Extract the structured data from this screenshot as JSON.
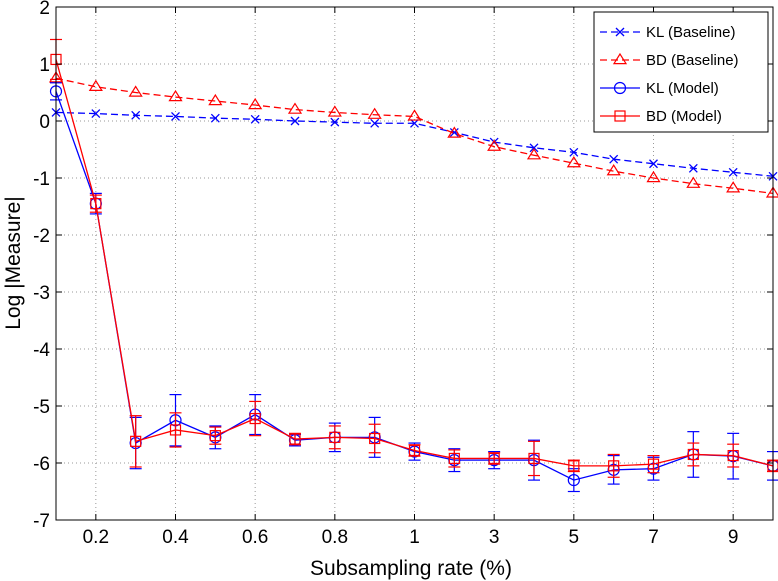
{
  "chart_data": {
    "type": "line",
    "title": "",
    "xlabel": "Subsampling rate (%)",
    "ylabel": "Log |Measure|",
    "ylim": [
      -7,
      2
    ],
    "grid": true,
    "legend_position": "top-right",
    "x_tick_labels": [
      "0.2",
      "0.4",
      "0.6",
      "0.8",
      "1",
      "3",
      "5",
      "7",
      "9"
    ],
    "y_tick_labels": [
      "2",
      "1",
      "0",
      "-1",
      "-2",
      "-3",
      "-4",
      "-5",
      "-6",
      "-7"
    ],
    "x": [
      0.1,
      0.2,
      0.3,
      0.4,
      0.5,
      0.6,
      0.7,
      0.8,
      0.9,
      1,
      2,
      3,
      4,
      5,
      6,
      7,
      8,
      9,
      10
    ],
    "colors": {
      "kl": "#0000ff",
      "bd": "#ff0000"
    },
    "series": [
      {
        "name": "KL (Baseline)",
        "color": "#0000ff",
        "line": "dashed",
        "marker": "x",
        "values": [
          0.15,
          0.13,
          0.1,
          0.08,
          0.05,
          0.03,
          0.0,
          -0.02,
          -0.04,
          -0.04,
          -0.2,
          -0.37,
          -0.47,
          -0.55,
          -0.67,
          -0.75,
          -0.83,
          -0.9,
          -0.97
        ]
      },
      {
        "name": "BD (Baseline)",
        "color": "#ff0000",
        "line": "dashed",
        "marker": "triangle",
        "values": [
          0.75,
          0.6,
          0.5,
          0.42,
          0.35,
          0.28,
          0.2,
          0.15,
          0.11,
          0.08,
          -0.22,
          -0.45,
          -0.6,
          -0.74,
          -0.88,
          -1.0,
          -1.1,
          -1.18,
          -1.27
        ]
      },
      {
        "name": "KL (Model)",
        "color": "#0000ff",
        "line": "solid",
        "marker": "circle",
        "values": [
          0.52,
          -1.45,
          -5.65,
          -5.25,
          -5.55,
          -5.15,
          -5.6,
          -5.55,
          -5.55,
          -5.8,
          -5.95,
          -5.95,
          -5.95,
          -6.3,
          -6.12,
          -6.1,
          -5.85,
          -5.88,
          -6.05
        ],
        "errors": [
          0.15,
          0.18,
          0.45,
          0.45,
          0.2,
          0.35,
          0.1,
          0.25,
          0.35,
          0.15,
          0.2,
          0.15,
          0.35,
          0.2,
          0.25,
          0.2,
          0.4,
          0.4,
          0.25
        ]
      },
      {
        "name": "BD (Model)",
        "color": "#ff0000",
        "line": "solid",
        "marker": "square",
        "values": [
          1.08,
          -1.45,
          -5.62,
          -5.42,
          -5.52,
          -5.22,
          -5.58,
          -5.55,
          -5.57,
          -5.78,
          -5.92,
          -5.92,
          -5.92,
          -6.05,
          -6.05,
          -6.02,
          -5.85,
          -5.87,
          -6.05
        ],
        "errors": [
          0.35,
          0.15,
          0.45,
          0.3,
          0.15,
          0.3,
          0.1,
          0.2,
          0.25,
          0.1,
          0.15,
          0.1,
          0.3,
          0.1,
          0.2,
          0.15,
          0.2,
          0.2,
          0.1
        ]
      }
    ]
  }
}
